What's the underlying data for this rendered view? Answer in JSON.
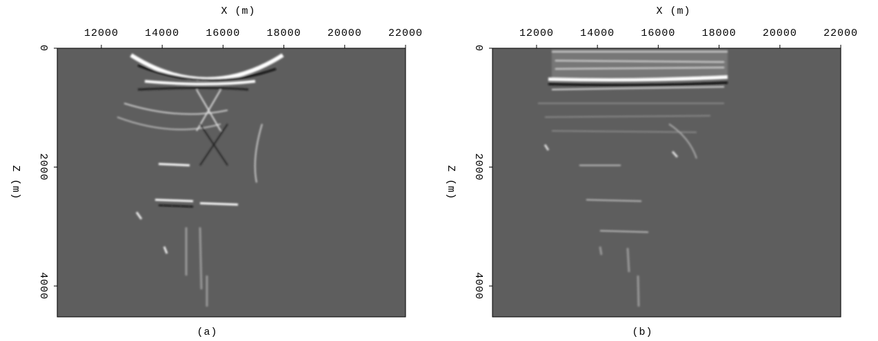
{
  "chart_data": [
    {
      "type": "image",
      "x_label": "X (m)",
      "y_label": "Z (m)",
      "caption": "(a)",
      "xlim": [
        10550,
        22000
      ],
      "xticks": [
        12000,
        14000,
        16000,
        18000,
        20000,
        22000
      ],
      "ylim": [
        0,
        4520
      ],
      "yticks": [
        0,
        2000,
        4000
      ],
      "color": "#5e5e5e",
      "grid": false
    },
    {
      "type": "image",
      "x_label": "X (m)",
      "y_label": "Z (m)",
      "caption": "(b)",
      "xlim": [
        10550,
        22000
      ],
      "xticks": [
        12000,
        14000,
        16000,
        18000,
        20000,
        22000
      ],
      "ylim": [
        0,
        4520
      ],
      "yticks": [
        0,
        2000,
        4000
      ],
      "color": "#5e5e5e",
      "grid": false
    }
  ]
}
